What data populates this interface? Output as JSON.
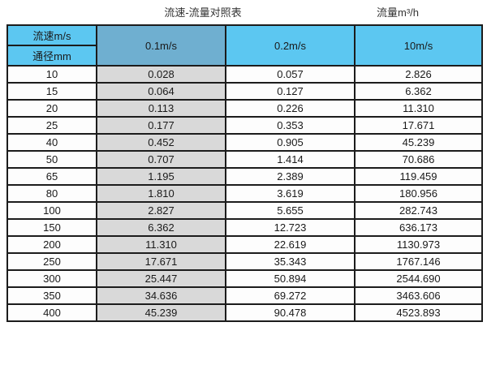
{
  "titles": {
    "left": "流速-流量对照表",
    "right": "流量m³/h"
  },
  "table": {
    "corner_top": "流速m/s",
    "corner_bottom": "通径mm",
    "columns": [
      "0.1m/s",
      "0.2m/s",
      "10m/s"
    ],
    "rows": [
      {
        "diameter": "10",
        "values": [
          "0.028",
          "0.057",
          "2.826"
        ]
      },
      {
        "diameter": "15",
        "values": [
          "0.064",
          "0.127",
          "6.362"
        ]
      },
      {
        "diameter": "20",
        "values": [
          "0.113",
          "0.226",
          "11.310"
        ]
      },
      {
        "diameter": "25",
        "values": [
          "0.177",
          "0.353",
          "17.671"
        ]
      },
      {
        "diameter": "40",
        "values": [
          "0.452",
          "0.905",
          "45.239"
        ]
      },
      {
        "diameter": "50",
        "values": [
          "0.707",
          "1.414",
          "70.686"
        ]
      },
      {
        "diameter": "65",
        "values": [
          "1.195",
          "2.389",
          "119.459"
        ]
      },
      {
        "diameter": "80",
        "values": [
          "1.810",
          "3.619",
          "180.956"
        ]
      },
      {
        "diameter": "100",
        "values": [
          "2.827",
          "5.655",
          "282.743"
        ]
      },
      {
        "diameter": "150",
        "values": [
          "6.362",
          "12.723",
          "636.173"
        ]
      },
      {
        "diameter": "200",
        "values": [
          "11.310",
          "22.619",
          "1130.973"
        ]
      },
      {
        "diameter": "250",
        "values": [
          "17.671",
          "35.343",
          "1767.146"
        ]
      },
      {
        "diameter": "300",
        "values": [
          "25.447",
          "50.894",
          "2544.690"
        ]
      },
      {
        "diameter": "350",
        "values": [
          "34.636",
          "69.272",
          "3463.606"
        ]
      },
      {
        "diameter": "400",
        "values": [
          "45.239",
          "90.478",
          "4523.893"
        ]
      }
    ]
  },
  "colors": {
    "header_blue": "#5cc7f1",
    "highlight_blue": "#6fafd0",
    "highlight_gray": "#d9d9d9",
    "border": "#1c1c1c",
    "text": "#1a1a1a"
  },
  "chart_data": {
    "type": "table",
    "title": "流速-流量对照表",
    "unit_label": "流量m³/h",
    "row_header_label_top": "流速m/s",
    "row_header_label_bottom": "通径mm",
    "columns": [
      "通径mm",
      "0.1m/s",
      "0.2m/s",
      "10m/s"
    ],
    "rows": [
      [
        10,
        0.028,
        0.057,
        2.826
      ],
      [
        15,
        0.064,
        0.127,
        6.362
      ],
      [
        20,
        0.113,
        0.226,
        11.31
      ],
      [
        25,
        0.177,
        0.353,
        17.671
      ],
      [
        40,
        0.452,
        0.905,
        45.239
      ],
      [
        50,
        0.707,
        1.414,
        70.686
      ],
      [
        65,
        1.195,
        2.389,
        119.459
      ],
      [
        80,
        1.81,
        3.619,
        180.956
      ],
      [
        100,
        2.827,
        5.655,
        282.743
      ],
      [
        150,
        6.362,
        12.723,
        636.173
      ],
      [
        200,
        11.31,
        22.619,
        1130.973
      ],
      [
        250,
        17.671,
        35.343,
        1767.146
      ],
      [
        300,
        25.447,
        50.894,
        2544.69
      ],
      [
        350,
        34.636,
        69.272,
        3463.606
      ],
      [
        400,
        45.239,
        90.478,
        4523.893
      ]
    ],
    "layout_hints": {
      "highlighted_column": "0.1m/s",
      "highlight_style": "gray column body, darker blue header"
    }
  }
}
